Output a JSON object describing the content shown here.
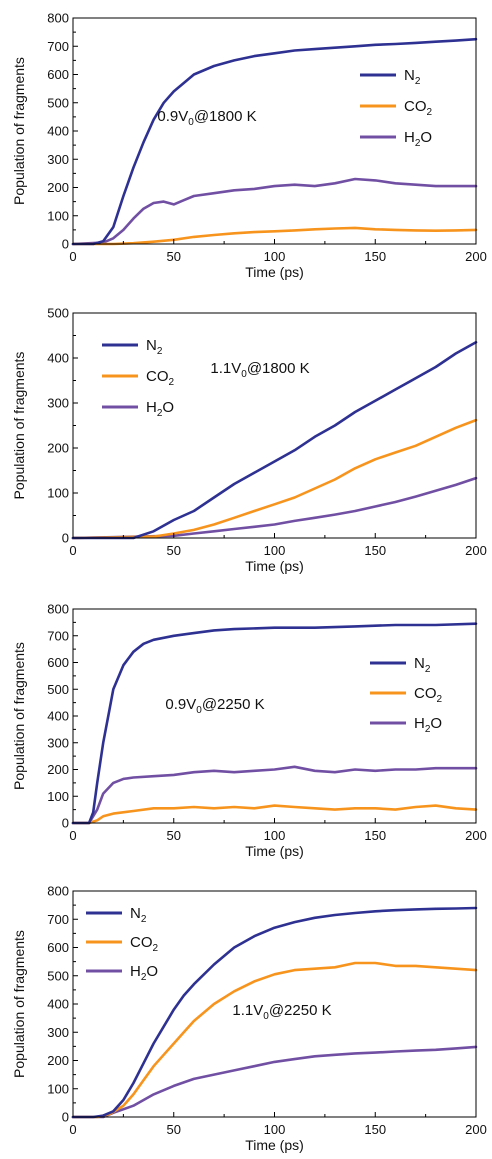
{
  "chart_data": [
    {
      "type": "line",
      "annotation": {
        "main": "0.9V",
        "sub": "0",
        "rest": "@1800 K"
      },
      "xlabel": "Time (ps)",
      "ylabel": "Population of fragments",
      "xlim": [
        0,
        200
      ],
      "ylim": [
        0,
        800
      ],
      "xticks": [
        0,
        50,
        100,
        150,
        200
      ],
      "yticks": [
        0,
        100,
        200,
        300,
        400,
        500,
        600,
        700,
        800
      ],
      "legend_position": "right",
      "series": [
        {
          "name": "N2",
          "label_main": "N",
          "label_sub": "2",
          "color": "#2e3192",
          "x": [
            0,
            10,
            15,
            20,
            25,
            30,
            35,
            40,
            45,
            50,
            55,
            60,
            70,
            80,
            90,
            100,
            110,
            120,
            130,
            140,
            150,
            160,
            170,
            180,
            190,
            200
          ],
          "y": [
            0,
            0,
            10,
            60,
            170,
            270,
            360,
            440,
            500,
            540,
            570,
            600,
            630,
            650,
            665,
            675,
            685,
            690,
            695,
            700,
            705,
            708,
            712,
            716,
            720,
            725
          ]
        },
        {
          "name": "CO2",
          "label_main": "CO",
          "label_sub": "2",
          "color": "#f7941d",
          "x": [
            0,
            20,
            30,
            40,
            50,
            60,
            70,
            80,
            90,
            100,
            110,
            120,
            130,
            140,
            150,
            160,
            170,
            180,
            190,
            200
          ],
          "y": [
            0,
            0,
            3,
            8,
            15,
            25,
            32,
            38,
            42,
            45,
            48,
            52,
            55,
            57,
            52,
            50,
            48,
            47,
            48,
            50
          ]
        },
        {
          "name": "H2O",
          "label_main": "H",
          "label_sub": "2",
          "label_rest": "O",
          "color": "#7150a4",
          "x": [
            0,
            15,
            20,
            25,
            30,
            35,
            40,
            45,
            50,
            55,
            60,
            70,
            80,
            90,
            100,
            110,
            120,
            130,
            140,
            150,
            160,
            170,
            180,
            190,
            200
          ],
          "y": [
            0,
            5,
            20,
            50,
            90,
            125,
            145,
            150,
            140,
            155,
            170,
            180,
            190,
            195,
            205,
            210,
            205,
            215,
            230,
            225,
            215,
            210,
            205,
            205,
            205
          ]
        }
      ]
    },
    {
      "type": "line",
      "annotation": {
        "main": "1.1V",
        "sub": "0",
        "rest": "@1800 K"
      },
      "xlabel": "Time (ps)",
      "ylabel": "Population of fragments",
      "xlim": [
        0,
        200
      ],
      "ylim": [
        0,
        500
      ],
      "xticks": [
        0,
        50,
        100,
        150,
        200
      ],
      "yticks": [
        0,
        100,
        200,
        300,
        400,
        500
      ],
      "legend_position": "top-left",
      "series": [
        {
          "name": "N2",
          "label_main": "N",
          "label_sub": "2",
          "color": "#2e3192",
          "x": [
            0,
            30,
            40,
            50,
            60,
            70,
            80,
            90,
            100,
            110,
            120,
            130,
            140,
            150,
            160,
            170,
            180,
            190,
            200
          ],
          "y": [
            0,
            0,
            15,
            40,
            60,
            90,
            120,
            145,
            170,
            195,
            225,
            250,
            280,
            305,
            330,
            355,
            380,
            410,
            435
          ]
        },
        {
          "name": "CO2",
          "label_main": "CO",
          "label_sub": "2",
          "color": "#f7941d",
          "x": [
            0,
            40,
            50,
            60,
            70,
            80,
            90,
            100,
            110,
            120,
            130,
            140,
            150,
            160,
            170,
            180,
            190,
            200
          ],
          "y": [
            0,
            3,
            10,
            18,
            30,
            45,
            60,
            75,
            90,
            110,
            130,
            155,
            175,
            190,
            205,
            225,
            245,
            262
          ]
        },
        {
          "name": "H2O",
          "label_main": "H",
          "label_sub": "2",
          "label_rest": "O",
          "color": "#7150a4",
          "x": [
            0,
            50,
            60,
            70,
            80,
            90,
            100,
            110,
            120,
            130,
            140,
            150,
            160,
            170,
            180,
            190,
            200
          ],
          "y": [
            0,
            5,
            10,
            15,
            20,
            25,
            30,
            38,
            45,
            52,
            60,
            70,
            80,
            92,
            105,
            118,
            133
          ]
        }
      ]
    },
    {
      "type": "line",
      "annotation": {
        "main": "0.9V",
        "sub": "0",
        "rest": "@2250 K"
      },
      "xlabel": "Time (ps)",
      "ylabel": "Population of fragments",
      "xlim": [
        0,
        200
      ],
      "ylim": [
        0,
        800
      ],
      "xticks": [
        0,
        50,
        100,
        150,
        200
      ],
      "yticks": [
        0,
        100,
        200,
        300,
        400,
        500,
        600,
        700,
        800
      ],
      "legend_position": "right",
      "series": [
        {
          "name": "N2",
          "label_main": "N",
          "label_sub": "2",
          "color": "#2e3192",
          "x": [
            0,
            8,
            10,
            12,
            15,
            18,
            20,
            25,
            30,
            35,
            40,
            50,
            60,
            70,
            80,
            100,
            120,
            140,
            160,
            180,
            200
          ],
          "y": [
            0,
            0,
            40,
            150,
            300,
            420,
            500,
            590,
            640,
            670,
            685,
            700,
            710,
            720,
            725,
            730,
            730,
            735,
            740,
            740,
            745
          ]
        },
        {
          "name": "CO2",
          "label_main": "CO",
          "label_sub": "2",
          "color": "#f7941d",
          "x": [
            0,
            8,
            12,
            15,
            20,
            30,
            40,
            50,
            60,
            70,
            80,
            90,
            100,
            110,
            120,
            130,
            140,
            150,
            160,
            170,
            180,
            190,
            200
          ],
          "y": [
            0,
            0,
            10,
            25,
            35,
            45,
            55,
            55,
            60,
            55,
            60,
            55,
            65,
            60,
            55,
            50,
            55,
            55,
            50,
            60,
            65,
            55,
            50
          ]
        },
        {
          "name": "H2O",
          "label_main": "H",
          "label_sub": "2",
          "label_rest": "O",
          "color": "#7150a4",
          "x": [
            0,
            8,
            12,
            15,
            20,
            25,
            30,
            40,
            50,
            60,
            70,
            80,
            90,
            100,
            110,
            120,
            130,
            140,
            150,
            160,
            170,
            180,
            190,
            200
          ],
          "y": [
            0,
            0,
            50,
            110,
            150,
            165,
            170,
            175,
            180,
            190,
            195,
            190,
            195,
            200,
            210,
            195,
            190,
            200,
            195,
            200,
            200,
            205,
            205,
            205
          ]
        }
      ]
    },
    {
      "type": "line",
      "annotation": {
        "main": "1.1V",
        "sub": "0",
        "rest": "@2250 K"
      },
      "xlabel": "Time (ps)",
      "ylabel": "Population of fragments",
      "xlim": [
        0,
        200
      ],
      "ylim": [
        0,
        800
      ],
      "xticks": [
        0,
        50,
        100,
        150,
        200
      ],
      "yticks": [
        0,
        100,
        200,
        300,
        400,
        500,
        600,
        700,
        800
      ],
      "legend_position": "top-left",
      "series": [
        {
          "name": "N2",
          "label_main": "N",
          "label_sub": "2",
          "color": "#2e3192",
          "x": [
            0,
            10,
            15,
            20,
            25,
            30,
            35,
            40,
            45,
            50,
            55,
            60,
            70,
            80,
            90,
            100,
            110,
            120,
            130,
            140,
            150,
            160,
            170,
            180,
            190,
            200
          ],
          "y": [
            0,
            0,
            5,
            20,
            60,
            120,
            190,
            260,
            320,
            380,
            430,
            470,
            540,
            600,
            640,
            670,
            690,
            705,
            715,
            722,
            728,
            732,
            735,
            737,
            738,
            740
          ]
        },
        {
          "name": "CO2",
          "label_main": "CO",
          "label_sub": "2",
          "color": "#f7941d",
          "x": [
            0,
            12,
            18,
            25,
            30,
            35,
            40,
            45,
            50,
            55,
            60,
            70,
            80,
            90,
            100,
            110,
            120,
            130,
            140,
            150,
            160,
            170,
            180,
            190,
            200
          ],
          "y": [
            0,
            0,
            10,
            40,
            80,
            130,
            180,
            220,
            260,
            300,
            340,
            400,
            445,
            480,
            505,
            520,
            525,
            530,
            545,
            545,
            535,
            535,
            530,
            525,
            520
          ]
        },
        {
          "name": "H2O",
          "label_main": "H",
          "label_sub": "2",
          "label_rest": "O",
          "color": "#7150a4",
          "x": [
            0,
            15,
            20,
            30,
            40,
            50,
            60,
            70,
            80,
            90,
            100,
            110,
            120,
            130,
            140,
            150,
            160,
            170,
            180,
            190,
            200
          ],
          "y": [
            0,
            0,
            15,
            40,
            80,
            110,
            135,
            150,
            165,
            180,
            195,
            205,
            215,
            220,
            225,
            228,
            232,
            235,
            238,
            243,
            248
          ]
        }
      ]
    }
  ]
}
